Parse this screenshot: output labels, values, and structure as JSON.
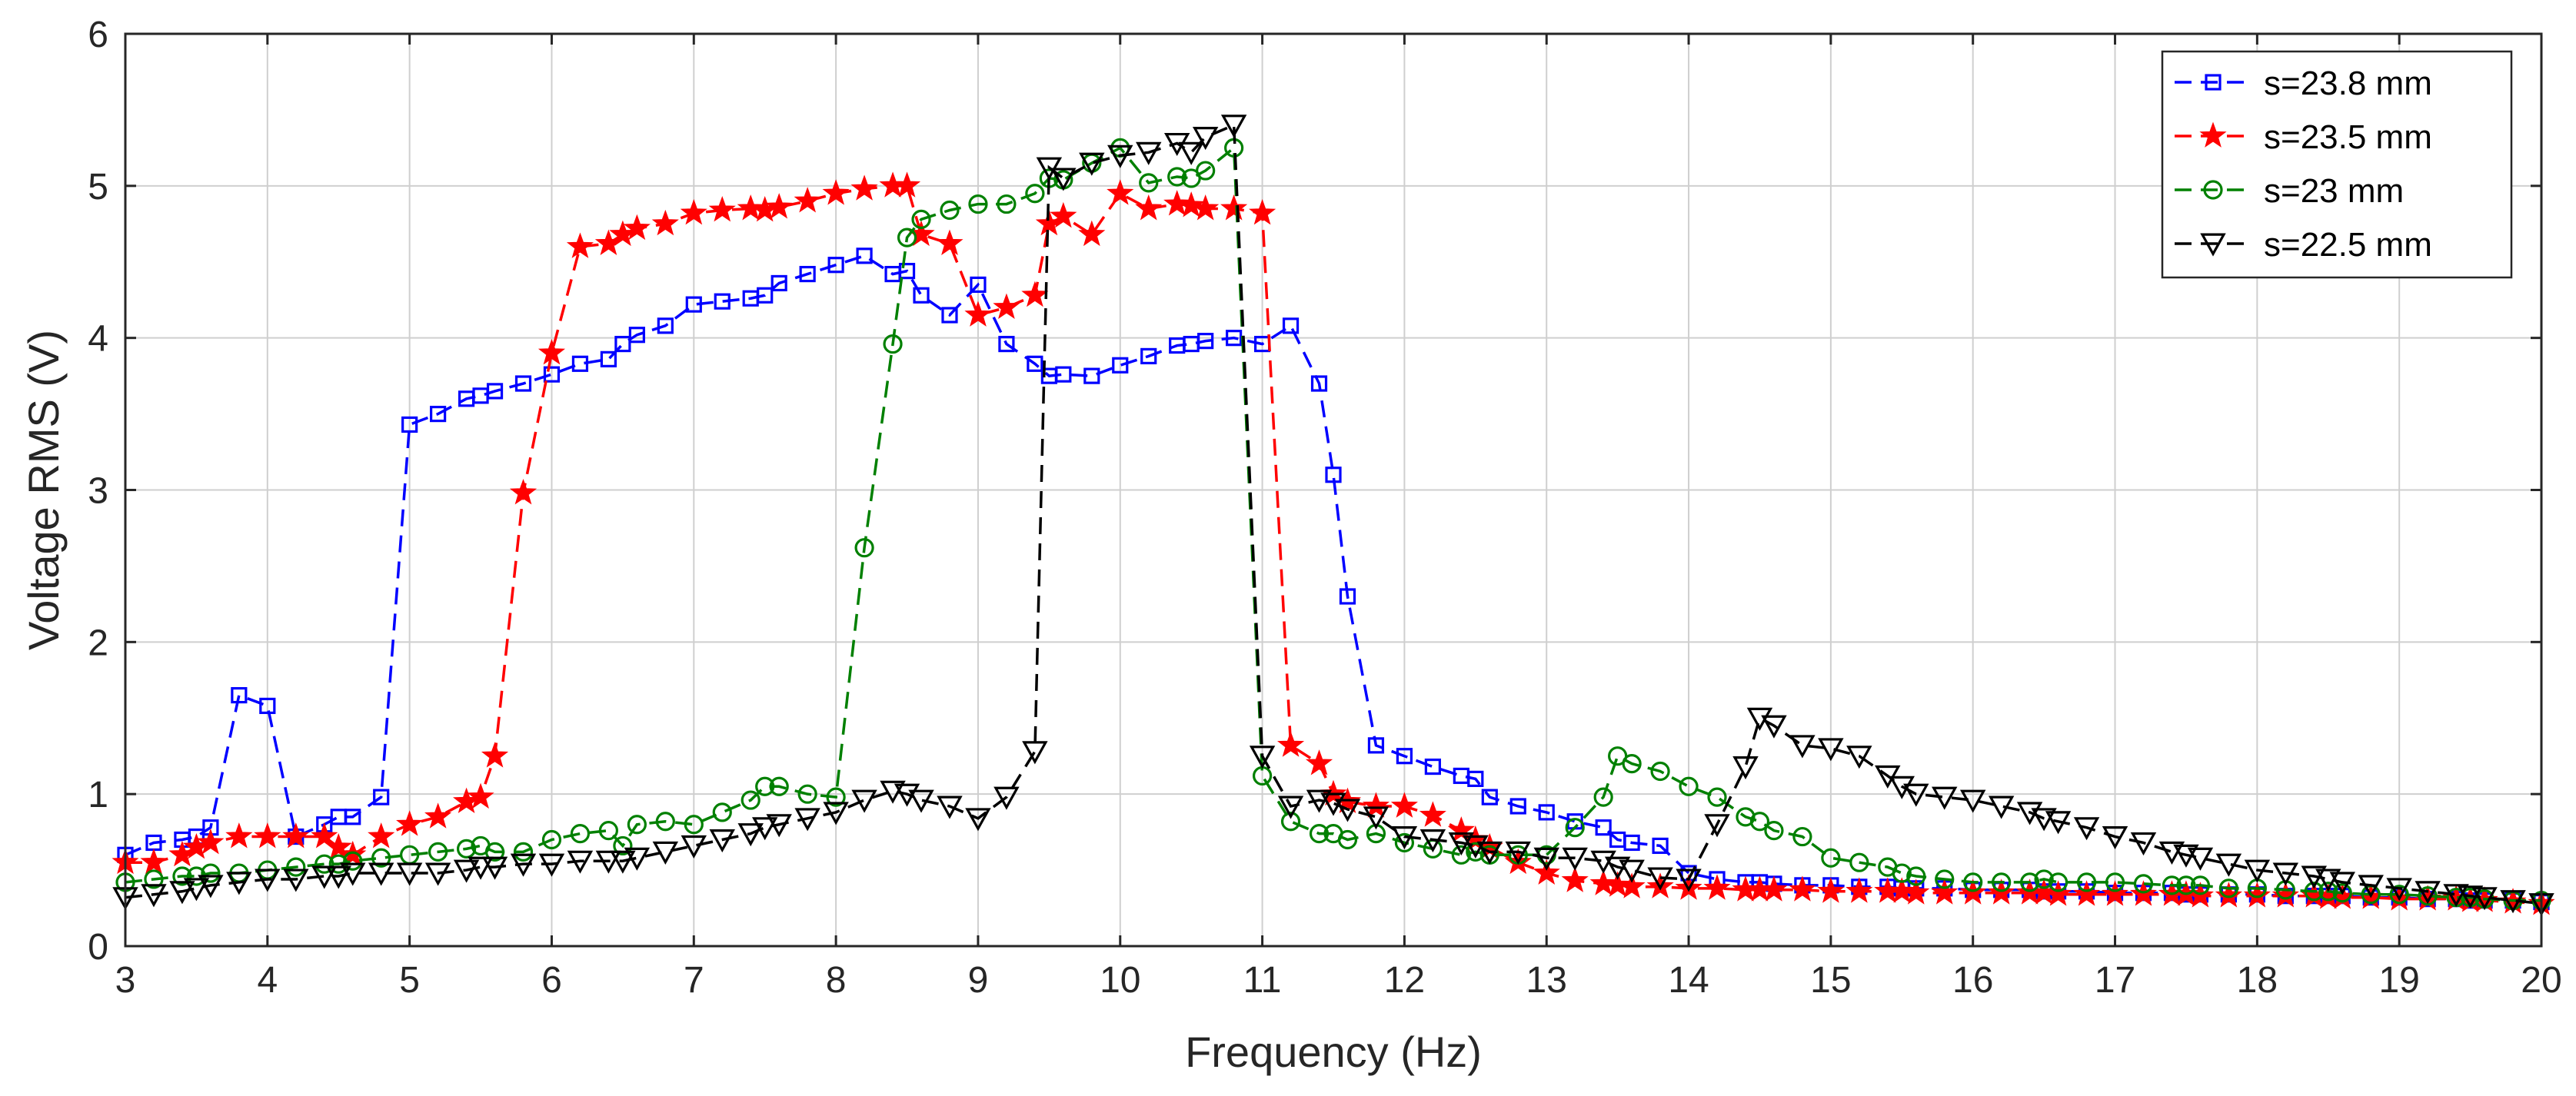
{
  "chart_data": {
    "type": "line",
    "title": "",
    "xlabel": "Frequency (Hz)",
    "ylabel": "Voltage RMS (V)",
    "xlim": [
      3,
      20
    ],
    "ylim": [
      0,
      6
    ],
    "xticks": [
      3,
      4,
      5,
      6,
      7,
      8,
      9,
      10,
      11,
      12,
      13,
      14,
      15,
      16,
      17,
      18,
      19,
      20
    ],
    "yticks": [
      0,
      1,
      2,
      3,
      4,
      5,
      6
    ],
    "grid": true,
    "legend_position": "top-right",
    "series": [
      {
        "name": "s=23.8 mm",
        "color": "#0000ff",
        "marker": "square",
        "x": [
          3.0,
          3.2,
          3.4,
          3.5,
          3.6,
          3.8,
          4.0,
          4.2,
          4.4,
          4.5,
          4.6,
          4.8,
          5.0,
          5.2,
          5.4,
          5.5,
          5.6,
          5.8,
          6.0,
          6.2,
          6.4,
          6.5,
          6.6,
          6.8,
          7.0,
          7.2,
          7.4,
          7.5,
          7.6,
          7.8,
          8.0,
          8.2,
          8.4,
          8.5,
          8.6,
          8.8,
          9.0,
          9.2,
          9.4,
          9.5,
          9.6,
          9.8,
          10.0,
          10.2,
          10.4,
          10.5,
          10.6,
          10.8,
          11.0,
          11.2,
          11.4,
          11.5,
          11.6,
          11.8,
          12.0,
          12.2,
          12.4,
          12.5,
          12.6,
          12.8,
          13.0,
          13.2,
          13.4,
          13.5,
          13.6,
          13.8,
          14.0,
          14.2,
          14.4,
          14.5,
          14.6,
          14.8,
          15.0,
          15.2,
          15.4,
          15.5,
          15.6,
          15.8,
          16.0,
          16.2,
          16.4,
          16.5,
          16.6,
          16.8,
          17.0,
          17.2,
          17.4,
          17.5,
          17.6,
          17.8,
          18.0,
          18.2,
          18.4,
          18.5,
          18.6,
          18.8,
          19.0,
          19.2,
          19.4,
          19.5,
          19.6,
          19.8,
          20.0
        ],
        "y": [
          0.6,
          0.68,
          0.7,
          0.72,
          0.78,
          1.65,
          1.58,
          0.72,
          0.8,
          0.85,
          0.85,
          0.98,
          3.43,
          3.5,
          3.6,
          3.62,
          3.65,
          3.7,
          3.76,
          3.83,
          3.86,
          3.96,
          4.02,
          4.08,
          4.22,
          4.24,
          4.26,
          4.28,
          4.36,
          4.42,
          4.48,
          4.54,
          4.42,
          4.44,
          4.28,
          4.15,
          4.35,
          3.96,
          3.83,
          3.75,
          3.76,
          3.75,
          3.82,
          3.88,
          3.95,
          3.96,
          3.98,
          4.0,
          3.96,
          4.08,
          3.7,
          3.1,
          2.3,
          1.32,
          1.25,
          1.18,
          1.12,
          1.1,
          0.98,
          0.92,
          0.88,
          0.82,
          0.78,
          0.7,
          0.68,
          0.66,
          0.48,
          0.44,
          0.42,
          0.42,
          0.41,
          0.4,
          0.4,
          0.39,
          0.39,
          0.38,
          0.38,
          0.38,
          0.37,
          0.37,
          0.37,
          0.36,
          0.36,
          0.36,
          0.35,
          0.35,
          0.35,
          0.34,
          0.34,
          0.34,
          0.34,
          0.33,
          0.33,
          0.33,
          0.33,
          0.32,
          0.32,
          0.31,
          0.31,
          0.3,
          0.3,
          0.3,
          0.29
        ]
      },
      {
        "name": "s=23.5 mm",
        "color": "#ff0000",
        "marker": "star",
        "x": [
          3.0,
          3.2,
          3.4,
          3.5,
          3.6,
          3.8,
          4.0,
          4.2,
          4.4,
          4.5,
          4.6,
          4.8,
          5.0,
          5.2,
          5.4,
          5.5,
          5.6,
          5.8,
          6.0,
          6.2,
          6.4,
          6.5,
          6.6,
          6.8,
          7.0,
          7.2,
          7.4,
          7.5,
          7.6,
          7.8,
          8.0,
          8.2,
          8.4,
          8.5,
          8.6,
          8.8,
          9.0,
          9.2,
          9.4,
          9.5,
          9.6,
          9.8,
          10.0,
          10.2,
          10.4,
          10.5,
          10.6,
          10.8,
          11.0,
          11.2,
          11.4,
          11.5,
          11.6,
          11.8,
          12.0,
          12.2,
          12.4,
          12.5,
          12.6,
          12.8,
          13.0,
          13.2,
          13.4,
          13.5,
          13.6,
          13.8,
          14.0,
          14.2,
          14.4,
          14.5,
          14.6,
          14.8,
          15.0,
          15.2,
          15.4,
          15.5,
          15.6,
          15.8,
          16.0,
          16.2,
          16.4,
          16.5,
          16.6,
          16.8,
          17.0,
          17.2,
          17.4,
          17.5,
          17.6,
          17.8,
          18.0,
          18.2,
          18.4,
          18.5,
          18.6,
          18.8,
          19.0,
          19.2,
          19.4,
          19.5,
          19.6,
          19.8,
          20.0
        ],
        "y": [
          0.55,
          0.55,
          0.6,
          0.65,
          0.68,
          0.72,
          0.72,
          0.72,
          0.72,
          0.65,
          0.6,
          0.72,
          0.8,
          0.85,
          0.95,
          0.98,
          1.25,
          2.98,
          3.9,
          4.6,
          4.62,
          4.68,
          4.72,
          4.75,
          4.82,
          4.84,
          4.85,
          4.84,
          4.86,
          4.9,
          4.95,
          4.98,
          5.0,
          5.0,
          4.68,
          4.62,
          4.15,
          4.2,
          4.28,
          4.75,
          4.8,
          4.68,
          4.95,
          4.85,
          4.88,
          4.87,
          4.85,
          4.85,
          4.82,
          1.32,
          1.2,
          1.0,
          0.95,
          0.92,
          0.92,
          0.86,
          0.76,
          0.7,
          0.65,
          0.55,
          0.48,
          0.43,
          0.41,
          0.4,
          0.39,
          0.39,
          0.38,
          0.38,
          0.37,
          0.37,
          0.37,
          0.37,
          0.36,
          0.36,
          0.36,
          0.36,
          0.35,
          0.35,
          0.35,
          0.35,
          0.35,
          0.35,
          0.34,
          0.34,
          0.34,
          0.34,
          0.34,
          0.34,
          0.33,
          0.33,
          0.33,
          0.33,
          0.33,
          0.32,
          0.32,
          0.32,
          0.31,
          0.31,
          0.31,
          0.3,
          0.3,
          0.29,
          0.28
        ]
      },
      {
        "name": "s=23 mm",
        "color": "#008000",
        "marker": "circle",
        "x": [
          3.0,
          3.2,
          3.4,
          3.5,
          3.6,
          3.8,
          4.0,
          4.2,
          4.4,
          4.5,
          4.6,
          4.8,
          5.0,
          5.2,
          5.4,
          5.5,
          5.6,
          5.8,
          6.0,
          6.2,
          6.4,
          6.5,
          6.6,
          6.8,
          7.0,
          7.2,
          7.4,
          7.5,
          7.6,
          7.8,
          8.0,
          8.2,
          8.4,
          8.5,
          8.6,
          8.8,
          9.0,
          9.2,
          9.4,
          9.5,
          9.6,
          9.8,
          10.0,
          10.2,
          10.4,
          10.5,
          10.6,
          10.8,
          11.0,
          11.2,
          11.4,
          11.5,
          11.6,
          11.8,
          12.0,
          12.2,
          12.4,
          12.5,
          12.6,
          12.8,
          13.0,
          13.2,
          13.4,
          13.5,
          13.6,
          13.8,
          14.0,
          14.2,
          14.4,
          14.5,
          14.6,
          14.8,
          15.0,
          15.2,
          15.4,
          15.5,
          15.6,
          15.8,
          16.0,
          16.2,
          16.4,
          16.5,
          16.6,
          16.8,
          17.0,
          17.2,
          17.4,
          17.5,
          17.6,
          17.8,
          18.0,
          18.2,
          18.4,
          18.5,
          18.6,
          18.8,
          19.0,
          19.2,
          19.4,
          19.5,
          19.6,
          19.8,
          20.0
        ],
        "y": [
          0.42,
          0.44,
          0.46,
          0.46,
          0.48,
          0.48,
          0.5,
          0.52,
          0.54,
          0.54,
          0.56,
          0.58,
          0.6,
          0.62,
          0.64,
          0.66,
          0.62,
          0.62,
          0.7,
          0.74,
          0.76,
          0.66,
          0.8,
          0.82,
          0.8,
          0.88,
          0.96,
          1.05,
          1.05,
          1.0,
          0.98,
          2.62,
          3.96,
          4.66,
          4.78,
          4.84,
          4.88,
          4.88,
          4.95,
          5.05,
          5.04,
          5.15,
          5.25,
          5.02,
          5.06,
          5.05,
          5.1,
          5.25,
          1.12,
          0.82,
          0.74,
          0.74,
          0.7,
          0.74,
          0.68,
          0.64,
          0.6,
          0.62,
          0.6,
          0.6,
          0.6,
          0.78,
          0.98,
          1.25,
          1.2,
          1.15,
          1.05,
          0.98,
          0.85,
          0.82,
          0.76,
          0.72,
          0.58,
          0.55,
          0.52,
          0.48,
          0.46,
          0.44,
          0.42,
          0.42,
          0.42,
          0.44,
          0.42,
          0.42,
          0.42,
          0.41,
          0.4,
          0.4,
          0.4,
          0.38,
          0.38,
          0.37,
          0.36,
          0.36,
          0.35,
          0.34,
          0.34,
          0.33,
          0.32,
          0.32,
          0.31,
          0.3,
          0.3
        ]
      },
      {
        "name": "s=22.5 mm",
        "color": "#000000",
        "marker": "triangle-down",
        "x": [
          3.0,
          3.2,
          3.4,
          3.5,
          3.6,
          3.8,
          4.0,
          4.2,
          4.4,
          4.5,
          4.6,
          4.8,
          5.0,
          5.2,
          5.4,
          5.5,
          5.6,
          5.8,
          6.0,
          6.2,
          6.4,
          6.5,
          6.6,
          6.8,
          7.0,
          7.2,
          7.4,
          7.5,
          7.6,
          7.8,
          8.0,
          8.2,
          8.4,
          8.5,
          8.6,
          8.8,
          9.0,
          9.2,
          9.4,
          9.5,
          9.6,
          9.8,
          10.0,
          10.2,
          10.4,
          10.5,
          10.6,
          10.8,
          11.0,
          11.2,
          11.4,
          11.5,
          11.6,
          11.8,
          12.0,
          12.2,
          12.4,
          12.5,
          12.6,
          12.8,
          13.0,
          13.2,
          13.4,
          13.5,
          13.6,
          13.8,
          14.0,
          14.2,
          14.4,
          14.5,
          14.6,
          14.8,
          15.0,
          15.2,
          15.4,
          15.5,
          15.6,
          15.8,
          16.0,
          16.2,
          16.4,
          16.5,
          16.6,
          16.8,
          17.0,
          17.2,
          17.4,
          17.5,
          17.6,
          17.8,
          18.0,
          18.2,
          18.4,
          18.5,
          18.6,
          18.8,
          19.0,
          19.2,
          19.4,
          19.5,
          19.6,
          19.8,
          20.0
        ],
        "y": [
          0.32,
          0.34,
          0.36,
          0.38,
          0.4,
          0.42,
          0.44,
          0.44,
          0.46,
          0.46,
          0.48,
          0.48,
          0.48,
          0.48,
          0.5,
          0.52,
          0.52,
          0.54,
          0.54,
          0.56,
          0.56,
          0.56,
          0.58,
          0.62,
          0.66,
          0.7,
          0.74,
          0.78,
          0.8,
          0.84,
          0.88,
          0.96,
          1.02,
          1.0,
          0.96,
          0.92,
          0.84,
          0.98,
          1.28,
          5.12,
          5.05,
          5.15,
          5.2,
          5.22,
          5.28,
          5.22,
          5.32,
          5.4,
          1.25,
          0.92,
          0.96,
          0.94,
          0.9,
          0.85,
          0.72,
          0.7,
          0.68,
          0.66,
          0.62,
          0.62,
          0.58,
          0.58,
          0.56,
          0.52,
          0.5,
          0.45,
          0.44,
          0.8,
          1.18,
          1.5,
          1.45,
          1.32,
          1.3,
          1.25,
          1.12,
          1.05,
          1.0,
          0.98,
          0.96,
          0.92,
          0.88,
          0.84,
          0.82,
          0.78,
          0.72,
          0.68,
          0.62,
          0.6,
          0.58,
          0.54,
          0.5,
          0.48,
          0.46,
          0.44,
          0.42,
          0.4,
          0.38,
          0.36,
          0.34,
          0.33,
          0.32,
          0.3,
          0.28
        ]
      }
    ]
  }
}
